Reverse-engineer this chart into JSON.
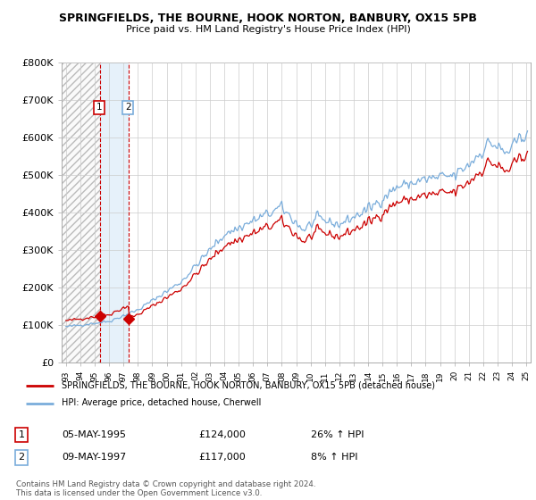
{
  "title": "SPRINGFIELDS, THE BOURNE, HOOK NORTON, BANBURY, OX15 5PB",
  "subtitle": "Price paid vs. HM Land Registry's House Price Index (HPI)",
  "ylim": [
    0,
    800000
  ],
  "yticks": [
    0,
    100000,
    200000,
    300000,
    400000,
    500000,
    600000,
    700000,
    800000
  ],
  "ytick_labels": [
    "£0",
    "£100K",
    "£200K",
    "£300K",
    "£400K",
    "£500K",
    "£600K",
    "£700K",
    "£800K"
  ],
  "line1_color": "#cc0000",
  "line2_color": "#7aaddb",
  "background_color": "#ffffff",
  "grid_color": "#cccccc",
  "purchase1_x": 1995.37,
  "purchase1_y": 124000,
  "purchase2_x": 1997.37,
  "purchase2_y": 117000,
  "hatch_end": 1995.37,
  "blue_band_start": 1995.37,
  "blue_band_end": 1997.37,
  "legend_line1": "SPRINGFIELDS, THE BOURNE, HOOK NORTON, BANBURY, OX15 5PB (detached house)",
  "legend_line2": "HPI: Average price, detached house, Cherwell",
  "footnote": "Contains HM Land Registry data © Crown copyright and database right 2024.\nThis data is licensed under the Open Government Licence v3.0.",
  "xlim_left": 1992.7,
  "xlim_right": 2025.3,
  "scale1": 1.26,
  "scale2": 1.08
}
